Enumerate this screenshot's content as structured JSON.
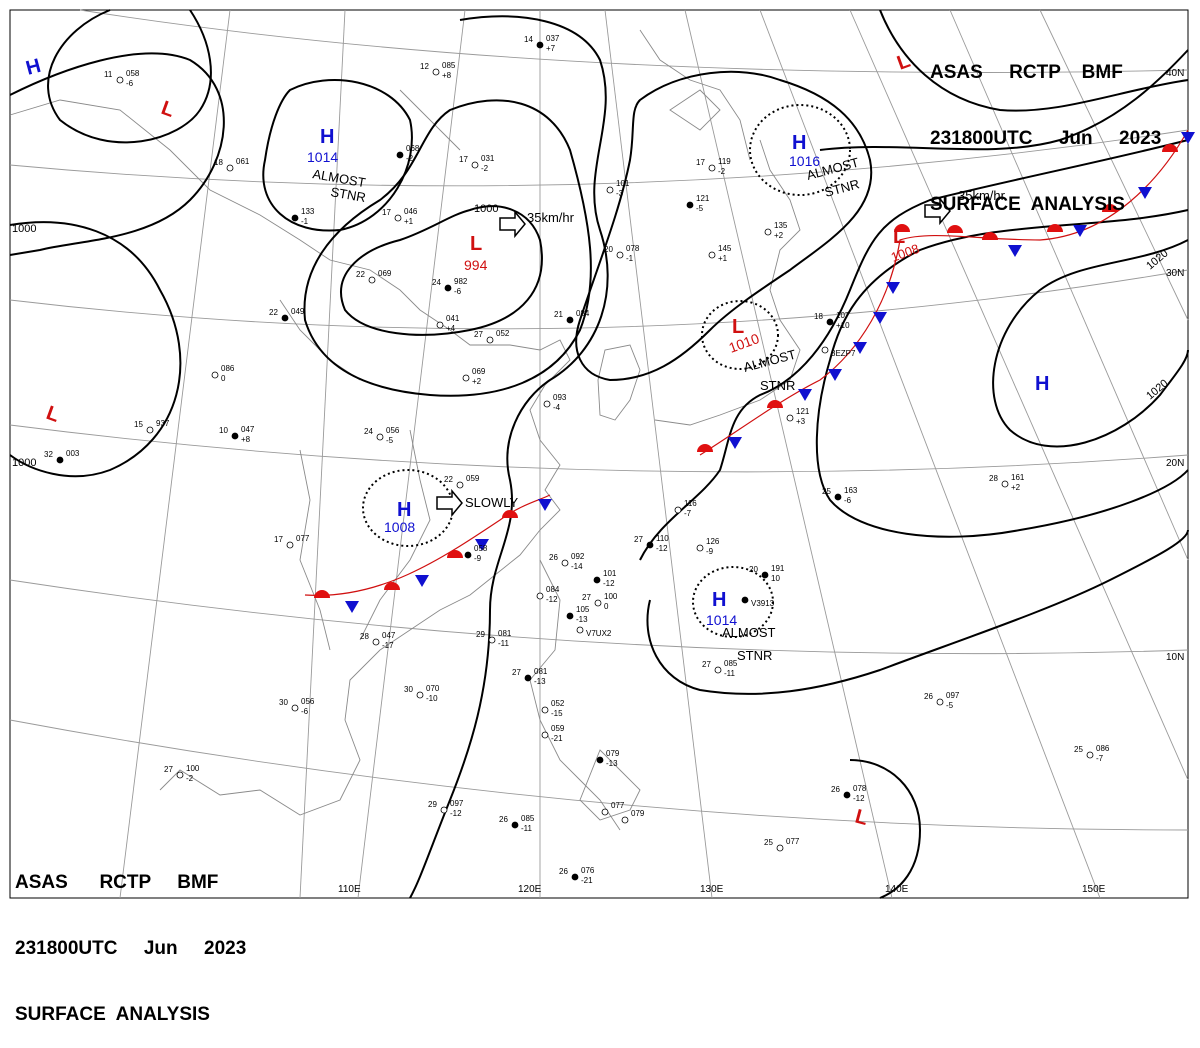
{
  "header": {
    "line1": "ASAS     RCTP    BMF",
    "line2": "231800UTC     Jun     2023",
    "line3": "SURFACE  ANALYSIS"
  },
  "footer": {
    "line1": "ASAS      RCTP     BMF",
    "line2": "231800UTC     Jun     2023",
    "line3": "SURFACE  ANALYSIS"
  },
  "lon_labels": [
    "110E",
    "120E",
    "130E",
    "140E",
    "150E"
  ],
  "lat_labels": [
    "30N",
    "20N",
    "10N",
    "40N"
  ],
  "isobar_labels": [
    "1000",
    "1000",
    "1000",
    "1020",
    "1020"
  ],
  "centers": [
    {
      "type": "H",
      "value": "1014",
      "note": [
        "ALMOST",
        "STNR"
      ]
    },
    {
      "type": "H",
      "value": "1016",
      "note": [
        "ALMOST",
        "STNR"
      ]
    },
    {
      "type": "L",
      "value": "994",
      "note": []
    },
    {
      "type": "L",
      "value": "1010",
      "note": [
        "ALMOST",
        "STNR"
      ]
    },
    {
      "type": "L",
      "value": "1008",
      "note": []
    },
    {
      "type": "H",
      "value": "1008",
      "note": []
    },
    {
      "type": "H",
      "value": "1014",
      "note": [
        "ALMOST",
        "STNR"
      ]
    },
    {
      "type": "H",
      "value": "",
      "note": []
    },
    {
      "type": "H",
      "value": "",
      "note": []
    },
    {
      "type": "L",
      "value": "",
      "note": []
    },
    {
      "type": "L",
      "value": "",
      "note": []
    },
    {
      "type": "L",
      "value": "",
      "note": []
    },
    {
      "type": "L",
      "value": "",
      "note": []
    }
  ],
  "motion": [
    {
      "text": "35km/hr"
    },
    {
      "text": "35km/hr"
    },
    {
      "text": "SLOWLY"
    }
  ],
  "stations": [
    {
      "t": "14",
      "p": "037",
      "d": "+7"
    },
    {
      "t": "12",
      "p": "085",
      "d": "+8"
    },
    {
      "t": "11",
      "p": "058",
      "d": "-6"
    },
    {
      "t": "",
      "p": "068",
      "d": "-2"
    },
    {
      "t": "17",
      "p": "031",
      "d": "-2"
    },
    {
      "t": "18",
      "p": "061",
      "d": ""
    },
    {
      "t": "",
      "p": "133",
      "d": "-1"
    },
    {
      "t": "17",
      "p": "046",
      "d": "+1"
    },
    {
      "t": "22",
      "p": "069",
      "d": ""
    },
    {
      "t": "24",
      "p": "982",
      "d": "-6"
    },
    {
      "t": "",
      "p": "041",
      "d": "+4"
    },
    {
      "t": "27",
      "p": "052",
      "d": ""
    },
    {
      "t": "22",
      "p": "049",
      "d": ""
    },
    {
      "t": "",
      "p": "086",
      "d": "0"
    },
    {
      "t": "",
      "p": "069",
      "d": "+2"
    },
    {
      "t": "10",
      "p": "047",
      "d": "+8"
    },
    {
      "t": "24",
      "p": "056",
      "d": "-5"
    },
    {
      "t": "15",
      "p": "937",
      "d": ""
    },
    {
      "t": "32",
      "p": "003",
      "d": ""
    },
    {
      "t": "",
      "p": "101",
      "d": "-3"
    },
    {
      "t": "20",
      "p": "078",
      "d": "-1"
    },
    {
      "t": "21",
      "p": "084",
      "d": ""
    },
    {
      "t": "",
      "p": "093",
      "d": "-4"
    },
    {
      "t": "17",
      "p": "119",
      "d": "-2"
    },
    {
      "t": "",
      "p": "121",
      "d": "-5"
    },
    {
      "t": "",
      "p": "145",
      "d": "+1"
    },
    {
      "t": "",
      "p": "135",
      "d": "+2"
    },
    {
      "t": "18",
      "p": "107",
      "d": "+10"
    },
    {
      "t": "",
      "p": "121",
      "d": "+3"
    },
    {
      "t": "22",
      "p": "059",
      "d": ""
    },
    {
      "t": "",
      "p": "058",
      "d": "-9"
    },
    {
      "t": "17",
      "p": "077",
      "d": ""
    },
    {
      "t": "",
      "p": "116",
      "d": "-7"
    },
    {
      "t": "27",
      "p": "110",
      "d": "-12"
    },
    {
      "t": "",
      "p": "126",
      "d": "-9"
    },
    {
      "t": "26",
      "p": "092",
      "d": "-14"
    },
    {
      "t": "",
      "p": "101",
      "d": "-12"
    },
    {
      "t": "",
      "p": "084",
      "d": "-12"
    },
    {
      "t": "27",
      "p": "100",
      "d": "0"
    },
    {
      "t": "",
      "p": "105",
      "d": "-13"
    },
    {
      "t": "28",
      "p": "047",
      "d": "-17"
    },
    {
      "t": "29",
      "p": "081",
      "d": "-11"
    },
    {
      "t": "20",
      "p": "191",
      "d": "10"
    },
    {
      "t": "30",
      "p": "070",
      "d": "-10"
    },
    {
      "t": "30",
      "p": "056",
      "d": "-6"
    },
    {
      "t": "27",
      "p": "081",
      "d": "-13"
    },
    {
      "t": "",
      "p": "052",
      "d": "-15"
    },
    {
      "t": "",
      "p": "059",
      "d": "-21"
    },
    {
      "t": "",
      "p": "079",
      "d": "-13"
    },
    {
      "t": "27",
      "p": "100",
      "d": "-2"
    },
    {
      "t": "29",
      "p": "097",
      "d": "-12"
    },
    {
      "t": "26",
      "p": "085",
      "d": "-11"
    },
    {
      "t": "",
      "p": "077",
      "d": ""
    },
    {
      "t": "",
      "p": "079",
      "d": ""
    },
    {
      "t": "26",
      "p": "076",
      "d": "-21"
    },
    {
      "t": "25",
      "p": "077",
      "d": ""
    },
    {
      "t": "28",
      "p": "161",
      "d": "+2"
    },
    {
      "t": "25",
      "p": "163",
      "d": "-6"
    },
    {
      "t": "26",
      "p": "097",
      "d": "-5"
    },
    {
      "t": "25",
      "p": "086",
      "d": "-7"
    },
    {
      "t": "26",
      "p": "078",
      "d": "-12"
    },
    {
      "t": "27",
      "p": "085",
      "d": "-11"
    },
    {
      "t": "",
      "p": "",
      "d": "3EZP7"
    },
    {
      "t": "",
      "p": "",
      "d": "V3913"
    },
    {
      "t": "",
      "p": "",
      "d": "V7UX2"
    }
  ],
  "colors": {
    "high": "#1010d0",
    "low": "#d01010",
    "isobar": "#000000",
    "grid": "#9a9a9a",
    "coast": "#8a8a8a",
    "warm_front": "#e01010",
    "cold_front": "#1010d0",
    "background": "#ffffff"
  }
}
